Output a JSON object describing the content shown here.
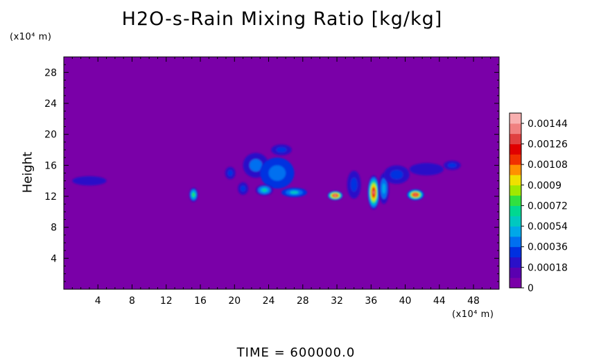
{
  "chart_data": {
    "type": "heatmap",
    "title": "H2O-s-Rain Mixing Ratio [kg/kg]",
    "xunit": "(x10⁴ m)",
    "yunit": "(x10⁴ m)",
    "ylabel": "Height",
    "xlim": [
      0,
      51
    ],
    "ylim": [
      0,
      30
    ],
    "xticks": [
      4,
      8,
      12,
      16,
      20,
      24,
      28,
      32,
      36,
      40,
      44,
      48
    ],
    "yticks": [
      4,
      8,
      12,
      16,
      20,
      24,
      28
    ],
    "grid": false,
    "background_color": "#7a00a8",
    "colorbar": {
      "labels": [
        "0.00144",
        "0.00126",
        "0.00108",
        "0.0009",
        "0.00072",
        "0.00054",
        "0.00036",
        "0.00018",
        "0"
      ],
      "values": [
        0.00144,
        0.00126,
        0.00108,
        0.0009,
        0.00072,
        0.00054,
        0.00036,
        0.00018,
        0
      ],
      "range": [
        0,
        0.00153
      ],
      "colors": [
        "#7a00a8",
        "#5a00b0",
        "#2a10c8",
        "#0030e0",
        "#0070f0",
        "#00a8e8",
        "#00c8c0",
        "#00d890",
        "#30e040",
        "#a0e800",
        "#f0e000",
        "#ff9000",
        "#f03000",
        "#e00000",
        "#e04040",
        "#f08080",
        "#f8b0b0"
      ]
    },
    "features": [
      {
        "x": 3.0,
        "y": 14.0,
        "rx": 2.0,
        "ry": 0.6,
        "level": 0.08
      },
      {
        "x": 15.2,
        "y": 12.2,
        "rx": 0.5,
        "ry": 0.9,
        "level": 0.45
      },
      {
        "x": 19.5,
        "y": 15.0,
        "rx": 0.6,
        "ry": 0.8,
        "level": 0.12
      },
      {
        "x": 21.0,
        "y": 13.0,
        "rx": 0.6,
        "ry": 0.8,
        "level": 0.12
      },
      {
        "x": 22.5,
        "y": 16.0,
        "rx": 1.5,
        "ry": 1.6,
        "level": 0.18
      },
      {
        "x": 25.0,
        "y": 15.0,
        "rx": 2.0,
        "ry": 2.0,
        "level": 0.22
      },
      {
        "x": 27.0,
        "y": 12.5,
        "rx": 1.5,
        "ry": 0.6,
        "level": 0.3
      },
      {
        "x": 23.5,
        "y": 12.8,
        "rx": 1.0,
        "ry": 0.7,
        "level": 0.35
      },
      {
        "x": 25.5,
        "y": 18.0,
        "rx": 1.2,
        "ry": 0.7,
        "level": 0.1
      },
      {
        "x": 31.8,
        "y": 12.1,
        "rx": 0.9,
        "ry": 0.6,
        "level": 0.95
      },
      {
        "x": 34.0,
        "y": 13.5,
        "rx": 0.8,
        "ry": 1.8,
        "level": 0.15
      },
      {
        "x": 36.3,
        "y": 12.5,
        "rx": 0.7,
        "ry": 2.2,
        "level": 0.85
      },
      {
        "x": 37.5,
        "y": 13.0,
        "rx": 0.6,
        "ry": 2.0,
        "level": 0.25
      },
      {
        "x": 39.0,
        "y": 14.8,
        "rx": 1.5,
        "ry": 1.2,
        "level": 0.12
      },
      {
        "x": 41.2,
        "y": 12.2,
        "rx": 1.0,
        "ry": 0.7,
        "level": 0.9
      },
      {
        "x": 42.5,
        "y": 15.5,
        "rx": 2.0,
        "ry": 0.8,
        "level": 0.08
      },
      {
        "x": 45.5,
        "y": 16.0,
        "rx": 1.0,
        "ry": 0.6,
        "level": 0.12
      }
    ]
  },
  "footer": {
    "time_label": "TIME = 600000.0"
  }
}
